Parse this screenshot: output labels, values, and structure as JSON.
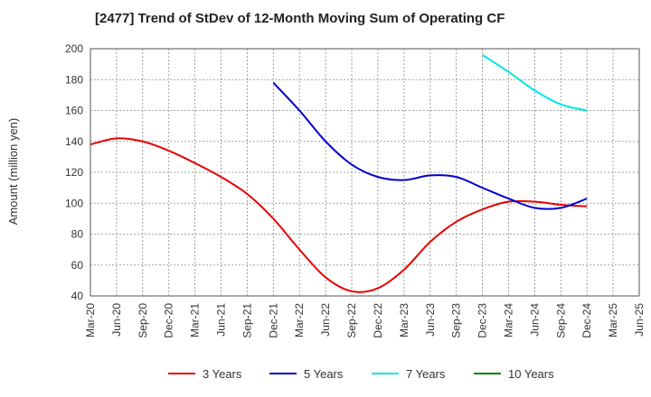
{
  "chart_data": {
    "type": "line",
    "title": "[2477]  Trend of StDev of 12-Month Moving Sum of Operating CF",
    "ylabel": "Amount (million yen)",
    "xlabel": "",
    "ylim": [
      40,
      200
    ],
    "yticks": [
      40,
      60,
      80,
      100,
      120,
      140,
      160,
      180,
      200
    ],
    "categories": [
      "Mar-20",
      "Jun-20",
      "Sep-20",
      "Dec-20",
      "Mar-21",
      "Jun-21",
      "Sep-21",
      "Dec-21",
      "Mar-22",
      "Jun-22",
      "Sep-22",
      "Dec-22",
      "Mar-23",
      "Jun-23",
      "Sep-23",
      "Dec-23",
      "Mar-24",
      "Jun-24",
      "Sep-24",
      "Dec-24",
      "Mar-25",
      "Jun-25"
    ],
    "grid": true,
    "legend_position": "bottom",
    "series": [
      {
        "name": "3 Years",
        "color": "#e60000",
        "x": [
          "Mar-20",
          "Jun-20",
          "Sep-20",
          "Dec-20",
          "Mar-21",
          "Jun-21",
          "Sep-21",
          "Dec-21",
          "Mar-22",
          "Jun-22",
          "Sep-22",
          "Dec-22",
          "Mar-23",
          "Jun-23",
          "Sep-23",
          "Dec-23",
          "Mar-24",
          "Jun-24",
          "Sep-24",
          "Dec-24"
        ],
        "values": [
          138,
          142,
          140,
          134,
          126,
          117,
          106,
          90,
          70,
          52,
          43,
          45,
          57,
          75,
          88,
          96,
          101,
          101,
          99,
          98
        ]
      },
      {
        "name": "5 Years",
        "color": "#0000cc",
        "x": [
          "Dec-21",
          "Mar-22",
          "Jun-22",
          "Sep-22",
          "Dec-22",
          "Mar-23",
          "Jun-23",
          "Sep-23",
          "Dec-23",
          "Mar-24",
          "Jun-24",
          "Sep-24",
          "Dec-24"
        ],
        "values": [
          178,
          160,
          140,
          125,
          117,
          115,
          118,
          117,
          110,
          103,
          97,
          97,
          103
        ]
      },
      {
        "name": "7 Years",
        "color": "#00e5e5",
        "x": [
          "Dec-23",
          "Mar-24",
          "Jun-24",
          "Sep-24",
          "Dec-24"
        ],
        "values": [
          196,
          185,
          173,
          164,
          160
        ]
      },
      {
        "name": "10 Years",
        "color": "#008000",
        "x": [],
        "values": []
      }
    ]
  }
}
